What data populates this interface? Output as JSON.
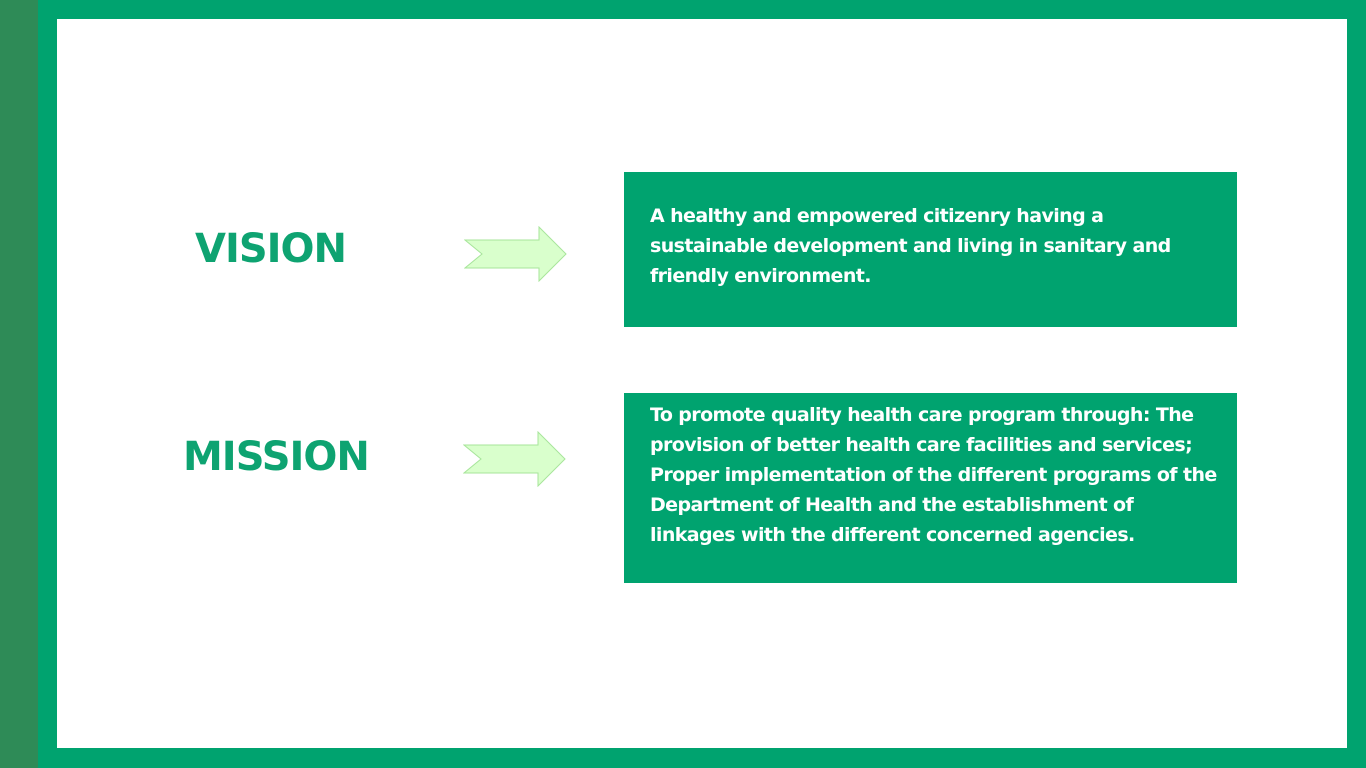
{
  "colors": {
    "frame": "#00a36f",
    "side_strip": "#2e8b57",
    "slide_background": "#ffffff",
    "heading_text": "#0ea371",
    "box_fill": "#00a36f",
    "box_text": "#ffffff",
    "arrow_fill": "#d9ffcc",
    "arrow_stroke": "#a7e59a"
  },
  "icons": {
    "vision_arrow": "right-arrow-icon",
    "mission_arrow": "right-arrow-icon"
  },
  "vision": {
    "heading": "VISION",
    "statement": "A healthy and empowered citizenry having a sustainable development and living in sanitary and friendly environment."
  },
  "mission": {
    "heading": "MISSION",
    "statement": "To promote quality health care program through: The provision of better health care facilities and services; Proper implementation of the different programs of the Department of Health and the establishment of linkages with the different concerned agencies."
  }
}
